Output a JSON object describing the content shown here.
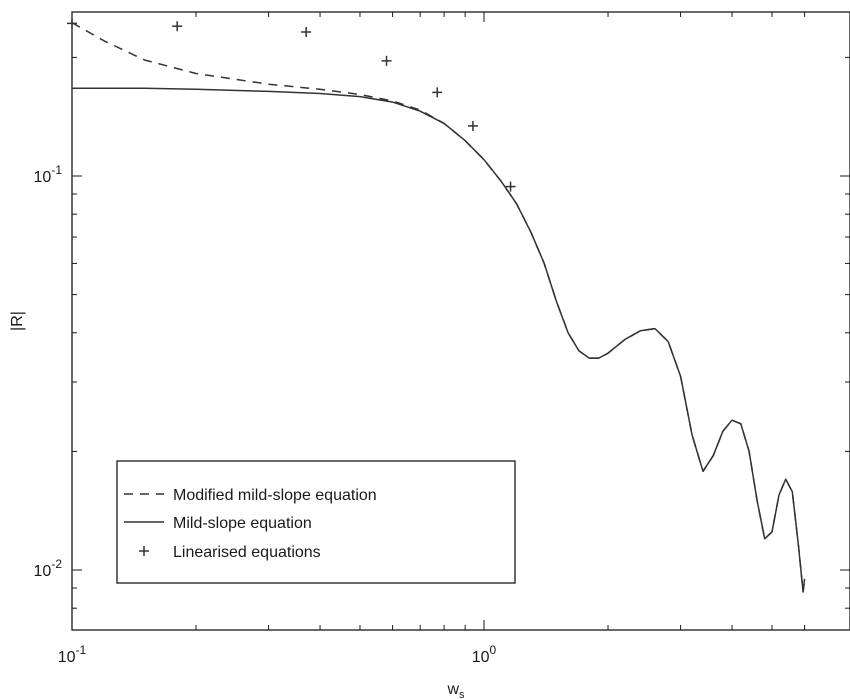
{
  "chart_data": {
    "type": "line",
    "xlabel": "w",
    "xlabel_sub": "s",
    "ylabel": "|R|",
    "xscale": "log",
    "yscale": "log",
    "xlim": [
      0.1,
      6.0
    ],
    "ylim": [
      0.0072,
      0.27
    ],
    "x_ticks": [
      {
        "value": 0.1,
        "base": "10",
        "exp": "-1"
      },
      {
        "value": 1.0,
        "base": "10",
        "exp": "0"
      }
    ],
    "y_ticks": [
      {
        "value": 0.01,
        "base": "10",
        "exp": "-2"
      },
      {
        "value": 0.1,
        "base": "10",
        "exp": "-1"
      }
    ],
    "grid": false,
    "legend_position": "lower-left",
    "series": [
      {
        "name": "Modified mild-slope equation",
        "style": "dashed",
        "color": "#333333",
        "points": [
          [
            0.1,
            0.245
          ],
          [
            0.12,
            0.22
          ],
          [
            0.15,
            0.197
          ],
          [
            0.2,
            0.182
          ],
          [
            0.3,
            0.171
          ],
          [
            0.4,
            0.166
          ],
          [
            0.5,
            0.161
          ],
          [
            0.6,
            0.155
          ],
          [
            0.7,
            0.147
          ],
          [
            0.8,
            0.136
          ],
          [
            0.9,
            0.123
          ],
          [
            1.0,
            0.11
          ],
          [
            1.1,
            0.097
          ],
          [
            1.2,
            0.085
          ],
          [
            1.3,
            0.072
          ],
          [
            1.4,
            0.06
          ],
          [
            1.5,
            0.048
          ],
          [
            1.6,
            0.04
          ],
          [
            1.7,
            0.036
          ],
          [
            1.8,
            0.0345
          ],
          [
            1.9,
            0.0345
          ],
          [
            2.0,
            0.0355
          ],
          [
            2.2,
            0.0385
          ],
          [
            2.4,
            0.0405
          ],
          [
            2.6,
            0.041
          ],
          [
            2.8,
            0.038
          ],
          [
            3.0,
            0.031
          ],
          [
            3.2,
            0.022
          ],
          [
            3.4,
            0.0178
          ],
          [
            3.6,
            0.0195
          ],
          [
            3.8,
            0.0225
          ],
          [
            4.0,
            0.024
          ],
          [
            4.2,
            0.0235
          ],
          [
            4.4,
            0.02
          ],
          [
            4.6,
            0.015
          ],
          [
            4.8,
            0.012
          ],
          [
            5.0,
            0.0125
          ],
          [
            5.2,
            0.0155
          ],
          [
            5.4,
            0.017
          ],
          [
            5.6,
            0.0158
          ],
          [
            5.8,
            0.0115
          ],
          [
            5.95,
            0.0088
          ],
          [
            6.0,
            0.0095
          ]
        ]
      },
      {
        "name": "Mild-slope equation",
        "style": "solid",
        "color": "#333333",
        "points": [
          [
            0.1,
            0.167
          ],
          [
            0.15,
            0.167
          ],
          [
            0.2,
            0.166
          ],
          [
            0.3,
            0.164
          ],
          [
            0.4,
            0.162
          ],
          [
            0.5,
            0.159
          ],
          [
            0.6,
            0.154
          ],
          [
            0.7,
            0.146
          ],
          [
            0.8,
            0.136
          ],
          [
            0.9,
            0.123
          ],
          [
            1.0,
            0.11
          ],
          [
            1.1,
            0.097
          ],
          [
            1.2,
            0.085
          ],
          [
            1.3,
            0.072
          ],
          [
            1.4,
            0.06
          ],
          [
            1.5,
            0.048
          ],
          [
            1.6,
            0.04
          ],
          [
            1.7,
            0.036
          ],
          [
            1.8,
            0.0345
          ],
          [
            1.9,
            0.0345
          ],
          [
            2.0,
            0.0355
          ],
          [
            2.2,
            0.0385
          ],
          [
            2.4,
            0.0405
          ],
          [
            2.6,
            0.041
          ],
          [
            2.8,
            0.038
          ],
          [
            3.0,
            0.031
          ],
          [
            3.2,
            0.022
          ],
          [
            3.4,
            0.0178
          ],
          [
            3.6,
            0.0195
          ],
          [
            3.8,
            0.0225
          ],
          [
            4.0,
            0.024
          ],
          [
            4.2,
            0.0235
          ],
          [
            4.4,
            0.02
          ],
          [
            4.6,
            0.015
          ],
          [
            4.8,
            0.012
          ],
          [
            5.0,
            0.0125
          ],
          [
            5.2,
            0.0155
          ],
          [
            5.4,
            0.017
          ],
          [
            5.6,
            0.0158
          ],
          [
            5.8,
            0.0115
          ],
          [
            5.95,
            0.0088
          ],
          [
            6.0,
            0.0095
          ]
        ]
      },
      {
        "name": "Linearised equations",
        "style": "markers",
        "marker": "+",
        "color": "#333333",
        "points": [
          [
            0.1,
            0.244
          ],
          [
            0.18,
            0.24
          ],
          [
            0.37,
            0.232
          ],
          [
            0.58,
            0.196
          ],
          [
            0.77,
            0.163
          ],
          [
            0.94,
            0.134
          ],
          [
            1.16,
            0.094
          ]
        ]
      }
    ]
  }
}
